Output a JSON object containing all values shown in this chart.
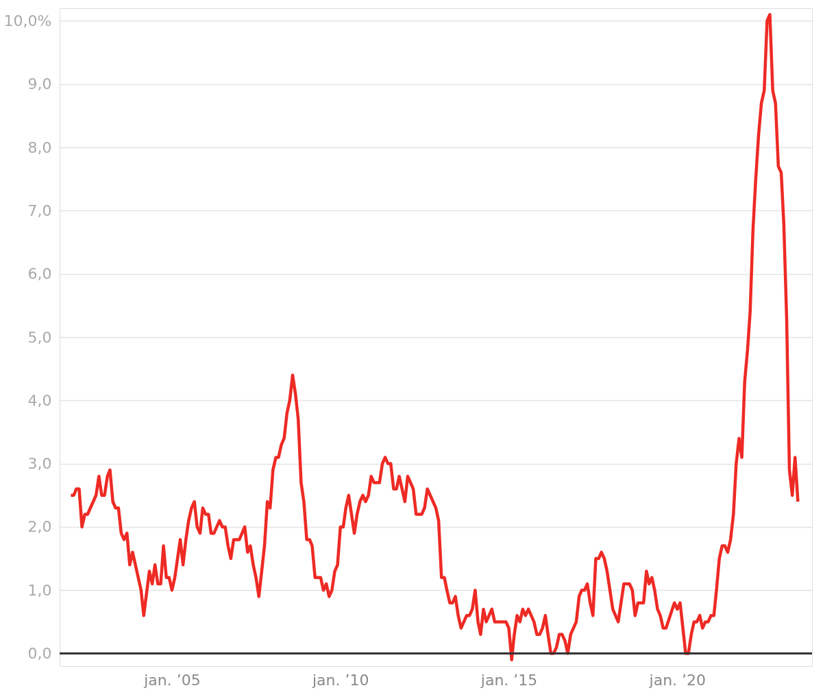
{
  "chart_data": {
    "type": "line",
    "xlim": [
      "2001-09",
      "2024-01"
    ],
    "xticks": [
      {
        "value": "2005-01",
        "label": "jan. ’05"
      },
      {
        "value": "2010-01",
        "label": "jan. ’10"
      },
      {
        "value": "2015-01",
        "label": "jan. ’15"
      },
      {
        "value": "2020-01",
        "label": "jan. ’20"
      }
    ],
    "ylim": [
      -0.2,
      10.2
    ],
    "yticks": [
      {
        "value": 0,
        "label": "0,0"
      },
      {
        "value": 1,
        "label": "1,0"
      },
      {
        "value": 2,
        "label": "2,0"
      },
      {
        "value": 3,
        "label": "3,0"
      },
      {
        "value": 4,
        "label": "4,0"
      },
      {
        "value": 5,
        "label": "5,0"
      },
      {
        "value": 6,
        "label": "6,0"
      },
      {
        "value": 7,
        "label": "7,0"
      },
      {
        "value": 8,
        "label": "8,0"
      },
      {
        "value": 9,
        "label": "9,0"
      },
      {
        "value": 10,
        "label": "10,0%"
      }
    ],
    "grid": "y",
    "line_style": "solid",
    "ref_lines": [
      {
        "axis": "y",
        "value": 0,
        "label": null,
        "color": "#333333"
      }
    ],
    "series": [
      {
        "color": "#ee2a24",
        "x": [
          "2002-01",
          "2002-02",
          "2002-03",
          "2002-04",
          "2002-05",
          "2002-06",
          "2002-07",
          "2002-10",
          "2002-11",
          "2002-12",
          "2003-01",
          "2003-02",
          "2003-03",
          "2003-04",
          "2003-05",
          "2003-06",
          "2003-07",
          "2003-08",
          "2003-09",
          "2003-10",
          "2003-11",
          "2004-02",
          "2004-03",
          "2004-05",
          "2004-06",
          "2004-07",
          "2004-08",
          "2004-09",
          "2004-10",
          "2004-11",
          "2004-12",
          "2005-01",
          "2005-02",
          "2005-04",
          "2005-05",
          "2005-06",
          "2005-07",
          "2005-08",
          "2005-09",
          "2005-10",
          "2005-11",
          "2005-12",
          "2006-01",
          "2006-02",
          "2006-03",
          "2006-04",
          "2006-06",
          "2006-07",
          "2006-08",
          "2006-09",
          "2006-10",
          "2006-11",
          "2007-01",
          "2007-03",
          "2007-04",
          "2007-05",
          "2007-06",
          "2007-07",
          "2007-08",
          "2007-09",
          "2007-10",
          "2007-11",
          "2007-12",
          "2008-01",
          "2008-02",
          "2008-03",
          "2008-04",
          "2008-05",
          "2008-06",
          "2008-07",
          "2008-08",
          "2008-09",
          "2008-10",
          "2008-11",
          "2008-12",
          "2009-01",
          "2009-02",
          "2009-03",
          "2009-04",
          "2009-06",
          "2009-07",
          "2009-08",
          "2009-09",
          "2009-10",
          "2009-11",
          "2009-12",
          "2010-01",
          "2010-02",
          "2010-03",
          "2010-04",
          "2010-06",
          "2010-07",
          "2010-08",
          "2010-09",
          "2010-10",
          "2010-11",
          "2010-12",
          "2011-01",
          "2011-03",
          "2011-04",
          "2011-05",
          "2011-06",
          "2011-07",
          "2011-08",
          "2011-09",
          "2011-10",
          "2011-12",
          "2012-01",
          "2012-02",
          "2012-03",
          "2012-04",
          "2012-06",
          "2012-07",
          "2012-08",
          "2012-09",
          "2012-11",
          "2012-12",
          "2013-01",
          "2013-02",
          "2013-03",
          "2013-04",
          "2013-05",
          "2013-06",
          "2013-07",
          "2013-08",
          "2013-10",
          "2013-11",
          "2013-12",
          "2014-01",
          "2014-02",
          "2014-03",
          "2014-04",
          "2014-05",
          "2014-07",
          "2014-08",
          "2014-11",
          "2014-12",
          "2015-01",
          "2015-02",
          "2015-03",
          "2015-04",
          "2015-05",
          "2015-06",
          "2015-07",
          "2015-08",
          "2015-10",
          "2015-11",
          "2015-12",
          "2016-01",
          "2016-02",
          "2016-03",
          "2016-04",
          "2016-05",
          "2016-06",
          "2016-07",
          "2016-08",
          "2016-09",
          "2016-10",
          "2016-11",
          "2017-01",
          "2017-02",
          "2017-03",
          "2017-04",
          "2017-05",
          "2017-06",
          "2017-07",
          "2017-08",
          "2017-09",
          "2017-10",
          "2017-11",
          "2017-12",
          "2018-02",
          "2018-04",
          "2018-06",
          "2018-08",
          "2018-09",
          "2018-10",
          "2018-11",
          "2019-01",
          "2019-02",
          "2019-03",
          "2019-04",
          "2019-05",
          "2019-06",
          "2019-07",
          "2019-08",
          "2019-09",
          "2019-12",
          "2020-01",
          "2020-02",
          "2020-04",
          "2020-05",
          "2020-06",
          "2020-07",
          "2020-08",
          "2020-09",
          "2020-10",
          "2020-11",
          "2020-12",
          "2021-01",
          "2021-02",
          "2021-03",
          "2021-04",
          "2021-05",
          "2021-06",
          "2021-07",
          "2021-08",
          "2021-09",
          "2021-10",
          "2021-11",
          "2021-12",
          "2022-01",
          "2022-02",
          "2022-03",
          "2022-04",
          "2022-05",
          "2022-06",
          "2022-07",
          "2022-08",
          "2022-09",
          "2022-10",
          "2022-11",
          "2022-12",
          "2023-01",
          "2023-02",
          "2023-03",
          "2023-04",
          "2023-05",
          "2023-06",
          "2023-07",
          "2023-08"
        ],
        "values": [
          2.5,
          2.5,
          2.6,
          2.6,
          2.0,
          2.2,
          2.2,
          2.5,
          2.8,
          2.5,
          2.5,
          2.8,
          2.9,
          2.4,
          2.3,
          2.3,
          1.9,
          1.8,
          1.9,
          1.4,
          1.6,
          1.0,
          0.6,
          1.3,
          1.1,
          1.4,
          1.1,
          1.1,
          1.7,
          1.2,
          1.2,
          1.0,
          1.2,
          1.8,
          1.4,
          1.8,
          2.1,
          2.3,
          2.4,
          2.0,
          1.9,
          2.3,
          2.2,
          2.2,
          1.9,
          1.9,
          2.1,
          2.0,
          2.0,
          1.7,
          1.5,
          1.8,
          1.8,
          2.0,
          1.6,
          1.7,
          1.4,
          1.2,
          0.9,
          1.3,
          1.7,
          2.4,
          2.3,
          2.9,
          3.1,
          3.1,
          3.3,
          3.4,
          3.8,
          4.0,
          4.4,
          4.1,
          3.7,
          2.7,
          2.4,
          1.8,
          1.8,
          1.7,
          1.2,
          1.2,
          1.0,
          1.1,
          0.9,
          1.0,
          1.3,
          1.4,
          2.0,
          2.0,
          2.3,
          2.5,
          1.9,
          2.2,
          2.4,
          2.5,
          2.4,
          2.5,
          2.8,
          2.7,
          2.7,
          3.0,
          3.1,
          3.0,
          3.0,
          2.6,
          2.6,
          2.8,
          2.4,
          2.8,
          2.7,
          2.6,
          2.2,
          2.2,
          2.3,
          2.6,
          2.5,
          2.3,
          2.1,
          1.2,
          1.2,
          1.0,
          0.8,
          0.8,
          0.9,
          0.6,
          0.4,
          0.6,
          0.6,
          0.7,
          1.0,
          0.5,
          0.3,
          0.7,
          0.5,
          0.7,
          0.5,
          0.5,
          0.5,
          0.4,
          -0.1,
          0.3,
          0.6,
          0.5,
          0.7,
          0.6,
          0.7,
          0.5,
          0.3,
          0.3,
          0.4,
          0.6,
          0.3,
          0.0,
          0.0,
          0.1,
          0.3,
          0.3,
          0.2,
          0.0,
          0.3,
          0.5,
          0.9,
          1.0,
          1.0,
          1.1,
          0.8,
          0.6,
          1.5,
          1.5,
          1.6,
          1.5,
          1.3,
          0.7,
          0.5,
          1.1,
          1.1,
          1.0,
          0.6,
          0.8,
          0.8,
          1.3,
          1.1,
          1.2,
          1.0,
          0.7,
          0.6,
          0.4,
          0.4,
          0.8,
          0.7,
          0.8,
          0.0,
          0.0,
          0.3,
          0.5,
          0.5,
          0.6,
          0.4,
          0.5,
          0.5,
          0.6,
          0.6,
          1.0,
          1.5,
          1.7,
          1.7,
          1.6,
          1.8,
          2.2,
          3.0,
          3.4,
          3.1,
          4.3,
          4.8,
          5.4,
          6.7,
          7.5,
          8.2,
          8.7,
          8.9,
          10.0,
          10.1,
          8.9,
          8.7,
          7.7,
          7.6,
          6.8,
          5.3,
          2.9,
          2.5,
          3.1,
          2.4
        ]
      }
    ]
  }
}
